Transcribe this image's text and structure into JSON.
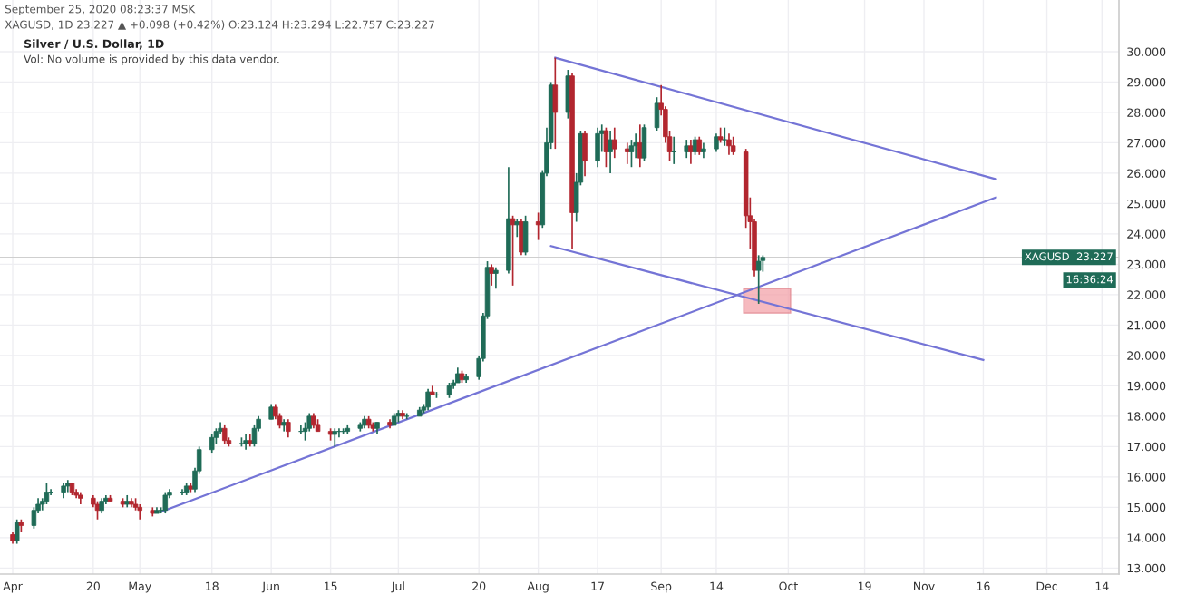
{
  "chart_data": {
    "type": "candlestick",
    "title": "Silver / U.S. Dollar, 1D",
    "subtitle": "Vol: No volume is provided by this data vendor.",
    "annotations": [
      "September 25, 2020 08:23:37 MSK",
      "XAGUSD, 1D 23.227 ▲ +0.098 (+0.42%) O:23.124 H:23.294 L:22.757 C:23.227",
      "16:36:24"
    ],
    "x": [
      "2020-04-01",
      "2020-04-02",
      "2020-04-03",
      "2020-04-06",
      "2020-04-07",
      "2020-04-08",
      "2020-04-09",
      "2020-04-10",
      "2020-04-13",
      "2020-04-14",
      "2020-04-15",
      "2020-04-16",
      "2020-04-17",
      "2020-04-20",
      "2020-04-21",
      "2020-04-22",
      "2020-04-23",
      "2020-04-24",
      "2020-04-27",
      "2020-04-28",
      "2020-04-29",
      "2020-04-30",
      "2020-05-01",
      "2020-05-04",
      "2020-05-05",
      "2020-05-06",
      "2020-05-07",
      "2020-05-08",
      "2020-05-11",
      "2020-05-12",
      "2020-05-13",
      "2020-05-14",
      "2020-05-15",
      "2020-05-18",
      "2020-05-19",
      "2020-05-20",
      "2020-05-21",
      "2020-05-22",
      "2020-05-25",
      "2020-05-26",
      "2020-05-27",
      "2020-05-28",
      "2020-05-29",
      "2020-06-01",
      "2020-06-02",
      "2020-06-03",
      "2020-06-04",
      "2020-06-05",
      "2020-06-08",
      "2020-06-09",
      "2020-06-10",
      "2020-06-11",
      "2020-06-12",
      "2020-06-15",
      "2020-06-16",
      "2020-06-17",
      "2020-06-18",
      "2020-06-19",
      "2020-06-22",
      "2020-06-23",
      "2020-06-24",
      "2020-06-25",
      "2020-06-26",
      "2020-06-29",
      "2020-06-30",
      "2020-07-01",
      "2020-07-02",
      "2020-07-03",
      "2020-07-06",
      "2020-07-07",
      "2020-07-08",
      "2020-07-09",
      "2020-07-10",
      "2020-07-13",
      "2020-07-14",
      "2020-07-15",
      "2020-07-16",
      "2020-07-17",
      "2020-07-20",
      "2020-07-21",
      "2020-07-22",
      "2020-07-23",
      "2020-07-24",
      "2020-07-27",
      "2020-07-28",
      "2020-07-29",
      "2020-07-30",
      "2020-07-31",
      "2020-08-03",
      "2020-08-04",
      "2020-08-05",
      "2020-08-06",
      "2020-08-07",
      "2020-08-10",
      "2020-08-11",
      "2020-08-12",
      "2020-08-13",
      "2020-08-14",
      "2020-08-17",
      "2020-08-18",
      "2020-08-19",
      "2020-08-20",
      "2020-08-21",
      "2020-08-24",
      "2020-08-25",
      "2020-08-26",
      "2020-08-27",
      "2020-08-28",
      "2020-08-31",
      "2020-09-01",
      "2020-09-02",
      "2020-09-03",
      "2020-09-04",
      "2020-09-07",
      "2020-09-08",
      "2020-09-09",
      "2020-09-10",
      "2020-09-11",
      "2020-09-14",
      "2020-09-15",
      "2020-09-16",
      "2020-09-17",
      "2020-09-18",
      "2020-09-21",
      "2020-09-22",
      "2020-09-23",
      "2020-09-24",
      "2020-09-25"
    ],
    "ohlc": [
      [
        14.1,
        14.2,
        13.8,
        13.9
      ],
      [
        13.9,
        14.6,
        13.8,
        14.5
      ],
      [
        14.5,
        14.6,
        14.2,
        14.4
      ],
      [
        14.4,
        15.0,
        14.3,
        14.9
      ],
      [
        14.9,
        15.3,
        14.8,
        15.1
      ],
      [
        15.1,
        15.3,
        14.9,
        15.2
      ],
      [
        15.2,
        15.8,
        15.1,
        15.5
      ],
      [
        15.5,
        15.6,
        15.4,
        15.5
      ],
      [
        15.5,
        15.8,
        15.3,
        15.7
      ],
      [
        15.7,
        15.9,
        15.5,
        15.8
      ],
      [
        15.8,
        15.8,
        15.4,
        15.5
      ],
      [
        15.5,
        15.6,
        15.3,
        15.4
      ],
      [
        15.4,
        15.5,
        15.1,
        15.3
      ],
      [
        15.3,
        15.4,
        15.0,
        15.1
      ],
      [
        15.1,
        15.2,
        14.6,
        14.9
      ],
      [
        14.9,
        15.3,
        14.8,
        15.2
      ],
      [
        15.2,
        15.4,
        15.1,
        15.3
      ],
      [
        15.3,
        15.4,
        15.2,
        15.2
      ],
      [
        15.2,
        15.3,
        15.0,
        15.1
      ],
      [
        15.1,
        15.4,
        15.0,
        15.2
      ],
      [
        15.2,
        15.3,
        15.0,
        15.1
      ],
      [
        15.1,
        15.3,
        14.9,
        15.0
      ],
      [
        15.0,
        15.1,
        14.6,
        14.9
      ],
      [
        14.9,
        15.0,
        14.7,
        14.8
      ],
      [
        14.8,
        15.0,
        14.8,
        14.9
      ],
      [
        14.9,
        15.0,
        14.8,
        14.9
      ],
      [
        14.9,
        15.5,
        14.8,
        15.4
      ],
      [
        15.4,
        15.6,
        15.3,
        15.5
      ],
      [
        15.5,
        15.6,
        15.4,
        15.5
      ],
      [
        15.5,
        15.8,
        15.4,
        15.7
      ],
      [
        15.7,
        15.8,
        15.5,
        15.6
      ],
      [
        15.6,
        16.3,
        15.5,
        16.2
      ],
      [
        16.2,
        17.0,
        16.1,
        16.9
      ],
      [
        16.9,
        17.4,
        16.8,
        17.3
      ],
      [
        17.3,
        17.6,
        17.1,
        17.5
      ],
      [
        17.5,
        17.8,
        17.4,
        17.6
      ],
      [
        17.6,
        17.7,
        17.1,
        17.2
      ],
      [
        17.2,
        17.3,
        17.0,
        17.1
      ],
      [
        17.1,
        17.3,
        17.0,
        17.1
      ],
      [
        17.1,
        17.4,
        16.9,
        17.2
      ],
      [
        17.2,
        17.4,
        17.0,
        17.1
      ],
      [
        17.1,
        17.7,
        17.0,
        17.6
      ],
      [
        17.6,
        18.0,
        17.5,
        17.9
      ],
      [
        17.9,
        18.4,
        17.9,
        18.3
      ],
      [
        18.3,
        18.4,
        17.9,
        18.0
      ],
      [
        18.0,
        18.1,
        17.6,
        17.7
      ],
      [
        17.7,
        17.9,
        17.5,
        17.8
      ],
      [
        17.8,
        17.9,
        17.3,
        17.5
      ],
      [
        17.5,
        17.7,
        17.4,
        17.5
      ],
      [
        17.5,
        17.8,
        17.2,
        17.6
      ],
      [
        17.6,
        18.1,
        17.5,
        18.0
      ],
      [
        18.0,
        18.1,
        17.6,
        17.7
      ],
      [
        17.7,
        17.9,
        17.5,
        17.5
      ],
      [
        17.5,
        17.6,
        17.2,
        17.4
      ],
      [
        17.4,
        17.6,
        17.0,
        17.5
      ],
      [
        17.5,
        17.6,
        17.3,
        17.5
      ],
      [
        17.5,
        17.6,
        17.4,
        17.5
      ],
      [
        17.5,
        17.7,
        17.4,
        17.6
      ],
      [
        17.6,
        17.8,
        17.5,
        17.7
      ],
      [
        17.7,
        18.0,
        17.6,
        17.9
      ],
      [
        17.9,
        18.0,
        17.6,
        17.7
      ],
      [
        17.7,
        17.8,
        17.5,
        17.6
      ],
      [
        17.6,
        17.8,
        17.4,
        17.8
      ],
      [
        17.8,
        17.9,
        17.6,
        17.7
      ],
      [
        17.7,
        18.1,
        17.7,
        18.0
      ],
      [
        18.0,
        18.2,
        17.8,
        18.1
      ],
      [
        18.1,
        18.2,
        17.9,
        18.0
      ],
      [
        18.0,
        18.1,
        17.9,
        18.0
      ],
      [
        18.0,
        18.3,
        18.0,
        18.2
      ],
      [
        18.2,
        18.4,
        18.1,
        18.3
      ],
      [
        18.3,
        18.9,
        18.2,
        18.8
      ],
      [
        18.8,
        19.0,
        18.7,
        18.7
      ],
      [
        18.7,
        18.8,
        18.6,
        18.7
      ],
      [
        18.7,
        19.1,
        18.6,
        19.0
      ],
      [
        19.0,
        19.2,
        18.9,
        19.1
      ],
      [
        19.1,
        19.6,
        19.1,
        19.4
      ],
      [
        19.4,
        19.5,
        19.1,
        19.2
      ],
      [
        19.2,
        19.4,
        19.1,
        19.3
      ],
      [
        19.3,
        20.0,
        19.2,
        19.9
      ],
      [
        19.9,
        21.4,
        19.8,
        21.3
      ],
      [
        21.3,
        23.1,
        21.2,
        22.9
      ],
      [
        22.9,
        23.0,
        22.3,
        22.7
      ],
      [
        22.7,
        22.9,
        22.2,
        22.8
      ],
      [
        22.8,
        26.2,
        22.7,
        24.5
      ],
      [
        24.5,
        24.6,
        22.3,
        24.3
      ],
      [
        24.3,
        24.5,
        23.9,
        24.4
      ],
      [
        24.4,
        24.5,
        23.3,
        23.4
      ],
      [
        23.4,
        24.6,
        23.3,
        24.4
      ],
      [
        24.4,
        24.7,
        23.8,
        24.3
      ],
      [
        24.3,
        26.1,
        24.2,
        26.0
      ],
      [
        26.0,
        27.5,
        25.9,
        27.0
      ],
      [
        27.0,
        29.0,
        26.8,
        28.9
      ],
      [
        28.9,
        29.8,
        26.8,
        28.0
      ],
      [
        28.0,
        29.4,
        27.8,
        29.2
      ],
      [
        29.2,
        29.3,
        23.5,
        24.7
      ],
      [
        24.7,
        26.0,
        24.4,
        25.7
      ],
      [
        25.7,
        27.4,
        25.6,
        27.3
      ],
      [
        27.3,
        27.4,
        25.9,
        26.4
      ],
      [
        26.4,
        27.5,
        26.2,
        27.3
      ],
      [
        27.3,
        27.6,
        26.7,
        27.4
      ],
      [
        27.4,
        27.5,
        26.2,
        26.7
      ],
      [
        26.7,
        27.4,
        26.0,
        27.1
      ],
      [
        27.1,
        27.5,
        26.5,
        26.8
      ],
      [
        26.8,
        27.0,
        26.3,
        26.7
      ],
      [
        26.7,
        27.1,
        26.2,
        26.9
      ],
      [
        26.9,
        27.3,
        26.5,
        27.0
      ],
      [
        27.0,
        27.6,
        26.2,
        26.5
      ],
      [
        26.5,
        27.6,
        26.4,
        27.5
      ],
      [
        27.5,
        28.5,
        27.4,
        28.3
      ],
      [
        28.3,
        28.9,
        27.9,
        28.1
      ],
      [
        28.1,
        28.2,
        27.0,
        27.2
      ],
      [
        27.2,
        27.4,
        26.4,
        26.7
      ],
      [
        26.7,
        27.2,
        26.3,
        26.7
      ],
      [
        26.7,
        27.1,
        26.5,
        26.9
      ],
      [
        26.9,
        27.1,
        26.3,
        26.7
      ],
      [
        26.7,
        27.2,
        26.6,
        27.1
      ],
      [
        27.1,
        27.2,
        26.6,
        26.7
      ],
      [
        26.7,
        27.0,
        26.5,
        26.8
      ],
      [
        26.8,
        27.3,
        26.7,
        27.2
      ],
      [
        27.2,
        27.5,
        27.0,
        27.1
      ],
      [
        27.1,
        27.5,
        26.9,
        27.1
      ],
      [
        27.1,
        27.3,
        26.6,
        26.9
      ],
      [
        26.9,
        27.2,
        26.6,
        26.7
      ],
      [
        26.7,
        26.8,
        24.2,
        24.6
      ],
      [
        24.6,
        25.2,
        23.5,
        24.4
      ],
      [
        24.4,
        24.5,
        22.6,
        22.8
      ],
      [
        22.8,
        23.3,
        21.7,
        23.1
      ],
      [
        23.124,
        23.294,
        22.757,
        23.227
      ]
    ],
    "colors": [
      "#b2262f",
      "#1f6b57",
      "#b2262f",
      "#1f6b57",
      "#1f6b57",
      "#1f6b57",
      "#1f6b57",
      "#1f6b57",
      "#1f6b57",
      "#1f6b57",
      "#b2262f",
      "#b2262f",
      "#b2262f",
      "#b2262f",
      "#b2262f",
      "#1f6b57",
      "#1f6b57",
      "#b2262f",
      "#b2262f",
      "#1f6b57",
      "#b2262f",
      "#b2262f",
      "#b2262f",
      "#b2262f",
      "#1f6b57",
      "#1f6b57",
      "#1f6b57",
      "#1f6b57",
      "#1f6b57",
      "#1f6b57",
      "#b2262f",
      "#1f6b57",
      "#1f6b57",
      "#1f6b57",
      "#1f6b57",
      "#1f6b57",
      "#b2262f",
      "#b2262f",
      "#1f6b57",
      "#1f6b57",
      "#b2262f",
      "#1f6b57",
      "#1f6b57",
      "#1f6b57",
      "#b2262f",
      "#b2262f",
      "#1f6b57",
      "#b2262f",
      "#1f6b57",
      "#1f6b57",
      "#1f6b57",
      "#b2262f",
      "#b2262f",
      "#b2262f",
      "#1f6b57",
      "#1f6b57",
      "#1f6b57",
      "#1f6b57",
      "#1f6b57",
      "#1f6b57",
      "#b2262f",
      "#b2262f",
      "#1f6b57",
      "#b2262f",
      "#1f6b57",
      "#1f6b57",
      "#b2262f",
      "#1f6b57",
      "#1f6b57",
      "#1f6b57",
      "#1f6b57",
      "#b2262f",
      "#1f6b57",
      "#1f6b57",
      "#1f6b57",
      "#1f6b57",
      "#b2262f",
      "#1f6b57",
      "#1f6b57",
      "#1f6b57",
      "#1f6b57",
      "#b2262f",
      "#1f6b57",
      "#1f6b57",
      "#b2262f",
      "#1f6b57",
      "#b2262f",
      "#1f6b57",
      "#b2262f",
      "#1f6b57",
      "#1f6b57",
      "#1f6b57",
      "#b2262f",
      "#1f6b57",
      "#b2262f",
      "#1f6b57",
      "#1f6b57",
      "#b2262f",
      "#1f6b57",
      "#1f6b57",
      "#b2262f",
      "#1f6b57",
      "#b2262f",
      "#b2262f",
      "#1f6b57",
      "#1f6b57",
      "#b2262f",
      "#1f6b57",
      "#1f6b57",
      "#b2262f",
      "#b2262f",
      "#b2262f",
      "#1f6b57",
      "#1f6b57",
      "#b2262f",
      "#1f6b57",
      "#b2262f",
      "#1f6b57",
      "#1f6b57",
      "#b2262f",
      "#1f6b57",
      "#b2262f",
      "#b2262f",
      "#b2262f",
      "#b2262f",
      "#b2262f",
      "#1f6b57",
      "#1f6b57"
    ],
    "series": [
      {
        "type": "line",
        "x": [
          "2020-08-07",
          "2020-11-19"
        ],
        "values": [
          29.8,
          25.8
        ],
        "color": "#7474d6"
      },
      {
        "type": "line",
        "x": [
          "2020-05-06",
          "2020-11-19"
        ],
        "values": [
          14.85,
          25.2
        ],
        "color": "#7474d6"
      },
      {
        "type": "line",
        "x": [
          "2020-08-06",
          "2020-11-16"
        ],
        "values": [
          23.6,
          19.85
        ],
        "color": "#7474d6"
      },
      {
        "type": "bar",
        "x": [
          "2020-09-26"
        ],
        "base": [
          21.4
        ],
        "values": [
          0.8
        ],
        "color": "#f4a3aa"
      }
    ],
    "ref_lines": [
      {
        "axis": "y",
        "value": 23.227,
        "label": "XAGUSD  23.227",
        "color": "#cfcfcf"
      }
    ],
    "xlim": [
      "2020-03-29",
      "2020-12-18"
    ],
    "xticks": [
      {
        "value": "2020-04-01",
        "label": "Apr"
      },
      {
        "value": "2020-04-20",
        "label": "20"
      },
      {
        "value": "2020-05-01",
        "label": "May"
      },
      {
        "value": "2020-05-18",
        "label": "18"
      },
      {
        "value": "2020-06-01",
        "label": "Jun"
      },
      {
        "value": "2020-06-15",
        "label": "15"
      },
      {
        "value": "2020-07-01",
        "label": "Jul"
      },
      {
        "value": "2020-07-20",
        "label": "20"
      },
      {
        "value": "2020-08-03",
        "label": "Aug"
      },
      {
        "value": "2020-08-17",
        "label": "17"
      },
      {
        "value": "2020-09-01",
        "label": "Sep"
      },
      {
        "value": "2020-09-14",
        "label": "14"
      },
      {
        "value": "2020-10-01",
        "label": "Oct"
      },
      {
        "value": "2020-10-19",
        "label": "19"
      },
      {
        "value": "2020-11-02",
        "label": "Nov"
      },
      {
        "value": "2020-11-16",
        "label": "16"
      },
      {
        "value": "2020-12-01",
        "label": "Dec"
      },
      {
        "value": "2020-12-14",
        "label": "14"
      }
    ],
    "ylim": [
      12.8,
      31.7
    ],
    "yticks": [
      {
        "value": 13,
        "label": "13.000"
      },
      {
        "value": 14,
        "label": "14.000"
      },
      {
        "value": 15,
        "label": "15.000"
      },
      {
        "value": 16,
        "label": "16.000"
      },
      {
        "value": 17,
        "label": "17.000"
      },
      {
        "value": 18,
        "label": "18.000"
      },
      {
        "value": 19,
        "label": "19.000"
      },
      {
        "value": 20,
        "label": "20.000"
      },
      {
        "value": 21,
        "label": "21.000"
      },
      {
        "value": 22,
        "label": "22.000"
      },
      {
        "value": 23,
        "label": "23.000"
      },
      {
        "value": 24,
        "label": "24.000"
      },
      {
        "value": 25,
        "label": "25.000"
      },
      {
        "value": 26,
        "label": "26.000"
      },
      {
        "value": 27,
        "label": "27.000"
      },
      {
        "value": 28,
        "label": "28.000"
      },
      {
        "value": 29,
        "label": "29.000"
      },
      {
        "value": 30,
        "label": "30.000"
      }
    ],
    "grid": true
  }
}
